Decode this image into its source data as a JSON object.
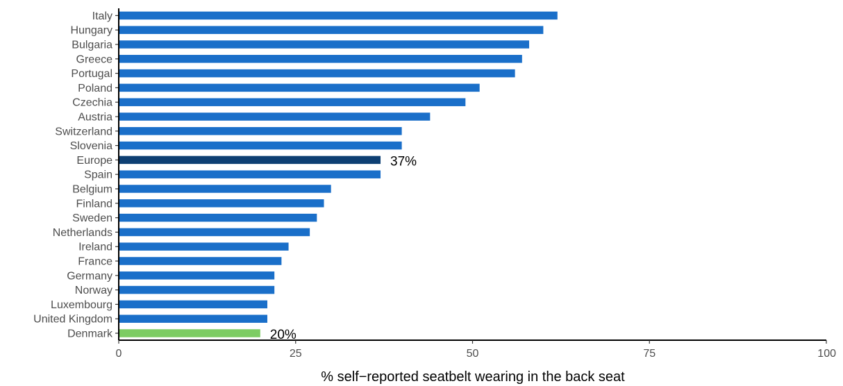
{
  "chart_data": {
    "type": "bar",
    "orientation": "horizontal",
    "xlabel": "% self−reported seatbelt wearing in the back seat",
    "xlim": [
      0,
      100
    ],
    "xticks": [
      0,
      25,
      50,
      75,
      100
    ],
    "xtick_labels": [
      "0",
      "25",
      "50",
      "75",
      "100"
    ],
    "grid": false,
    "categories": [
      "Italy",
      "Hungary",
      "Bulgaria",
      "Greece",
      "Portugal",
      "Poland",
      "Czechia",
      "Austria",
      "Switzerland",
      "Slovenia",
      "Europe",
      "Spain",
      "Belgium",
      "Finland",
      "Sweden",
      "Netherlands",
      "Ireland",
      "France",
      "Germany",
      "Norway",
      "Luxembourg",
      "United Kingdom",
      "Denmark"
    ],
    "values": [
      62,
      60,
      58,
      57,
      56,
      51,
      49,
      44,
      40,
      40,
      37,
      37,
      30,
      29,
      28,
      27,
      24,
      23,
      22,
      22,
      21,
      21,
      20
    ],
    "colors": {
      "default": "#1a6fc9",
      "highlight": {
        "Europe": "#0d3f73",
        "Denmark": "#7dcc63"
      }
    },
    "data_labels": [
      {
        "category": "Europe",
        "text": "37%"
      },
      {
        "category": "Denmark",
        "text": "20%"
      }
    ]
  }
}
